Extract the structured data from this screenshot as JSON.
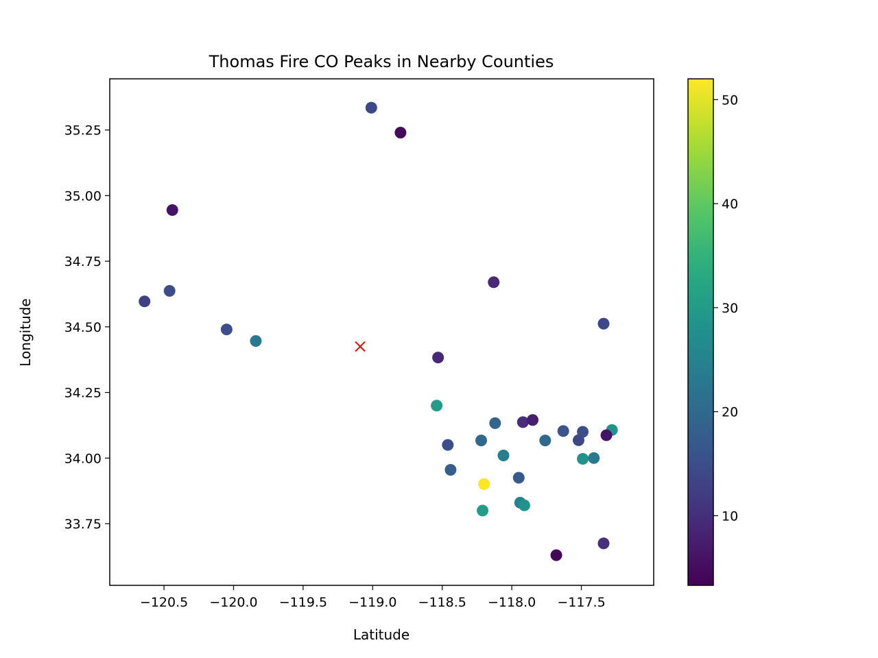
{
  "chart_data": {
    "type": "scatter",
    "title": "Thomas Fire CO Peaks in Nearby Counties",
    "xlabel": "Latitude",
    "ylabel": "Longitude",
    "xlim": [
      -120.89,
      -116.98
    ],
    "ylim": [
      33.515,
      35.445
    ],
    "xticks": [
      -120.5,
      -120.0,
      -119.5,
      -119.0,
      -118.5,
      -118.0,
      -117.5
    ],
    "xtick_labels": [
      "−120.5",
      "−120.0",
      "−119.5",
      "−119.0",
      "−118.5",
      "−118.0",
      "−117.5"
    ],
    "yticks": [
      33.75,
      34.0,
      34.25,
      34.5,
      34.75,
      35.0,
      35.25
    ],
    "ytick_labels": [
      "33.75",
      "34.00",
      "34.25",
      "34.50",
      "34.75",
      "35.00",
      "35.25"
    ],
    "grid": false,
    "colormap": "viridis",
    "colorbar": {
      "min": 3.3,
      "max": 52,
      "ticks": [
        10,
        20,
        30,
        40,
        50
      ],
      "tick_labels": [
        "10",
        "20",
        "30",
        "40",
        "50"
      ]
    },
    "marker": {
      "x": -119.09,
      "y": 34.425,
      "symbol": "x",
      "color": "#ff0000"
    },
    "points": [
      {
        "x": -119.01,
        "y": 35.335,
        "value": 14
      },
      {
        "x": -118.8,
        "y": 35.24,
        "value": 4.5
      },
      {
        "x": -120.44,
        "y": 34.945,
        "value": 6
      },
      {
        "x": -118.13,
        "y": 34.67,
        "value": 9
      },
      {
        "x": -120.64,
        "y": 34.597,
        "value": 13
      },
      {
        "x": -120.46,
        "y": 34.637,
        "value": 15
      },
      {
        "x": -120.05,
        "y": 34.49,
        "value": 15
      },
      {
        "x": -119.84,
        "y": 34.446,
        "value": 23
      },
      {
        "x": -117.34,
        "y": 34.512,
        "value": 14
      },
      {
        "x": -118.53,
        "y": 34.383,
        "value": 9
      },
      {
        "x": -118.54,
        "y": 34.2,
        "value": 30
      },
      {
        "x": -118.12,
        "y": 34.133,
        "value": 19
      },
      {
        "x": -117.92,
        "y": 34.137,
        "value": 9.5
      },
      {
        "x": -117.85,
        "y": 34.145,
        "value": 7.5
      },
      {
        "x": -117.63,
        "y": 34.103,
        "value": 16
      },
      {
        "x": -117.49,
        "y": 34.1,
        "value": 15
      },
      {
        "x": -117.28,
        "y": 34.107,
        "value": 28
      },
      {
        "x": -117.76,
        "y": 34.067,
        "value": 20
      },
      {
        "x": -118.22,
        "y": 34.067,
        "value": 20
      },
      {
        "x": -117.52,
        "y": 34.068,
        "value": 14
      },
      {
        "x": -117.32,
        "y": 34.087,
        "value": 6
      },
      {
        "x": -118.46,
        "y": 34.05,
        "value": 15
      },
      {
        "x": -118.06,
        "y": 34.01,
        "value": 24
      },
      {
        "x": -117.49,
        "y": 33.997,
        "value": 28
      },
      {
        "x": -117.41,
        "y": 34.0,
        "value": 23
      },
      {
        "x": -118.44,
        "y": 33.955,
        "value": 18
      },
      {
        "x": -117.95,
        "y": 33.925,
        "value": 17
      },
      {
        "x": -118.2,
        "y": 33.901,
        "value": 52
      },
      {
        "x": -117.94,
        "y": 33.83,
        "value": 25
      },
      {
        "x": -117.91,
        "y": 33.82,
        "value": 28
      },
      {
        "x": -118.21,
        "y": 33.8,
        "value": 30
      },
      {
        "x": -117.34,
        "y": 33.675,
        "value": 10
      },
      {
        "x": -117.68,
        "y": 33.63,
        "value": 4
      }
    ]
  }
}
